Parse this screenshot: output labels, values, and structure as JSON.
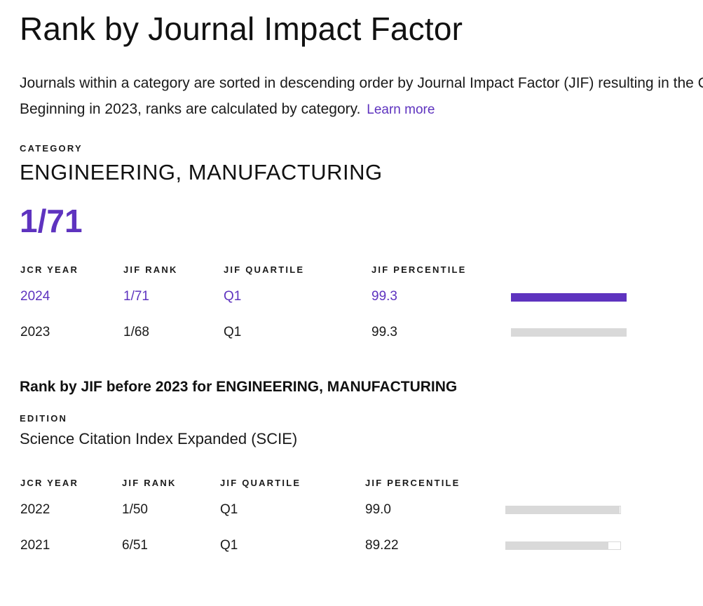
{
  "title": "Rank by Journal Impact Factor",
  "description": {
    "line1": "Journals within a category are sorted in descending order by Journal Impact Factor (JIF) resulting in the Category Ranking below.",
    "line2": "Beginning in 2023, ranks are calculated by category.",
    "learn_more": "Learn more"
  },
  "category": {
    "label": "CATEGORY",
    "name": "ENGINEERING, MANUFACTURING",
    "rank": "1/71"
  },
  "table_current": {
    "headers": [
      "JCR YEAR",
      "JIF RANK",
      "JIF QUARTILE",
      "JIF PERCENTILE"
    ],
    "rows": [
      {
        "year": "2024",
        "rank": "1/71",
        "quartile": "Q1",
        "percentile": "99.3",
        "percentile_value": 99.3
      },
      {
        "year": "2023",
        "rank": "1/68",
        "quartile": "Q1",
        "percentile": "99.3",
        "percentile_value": 99.3
      }
    ]
  },
  "pre2023": {
    "heading": "Rank by JIF before 2023 for ENGINEERING, MANUFACTURING",
    "edition_label": "EDITION",
    "edition_name": "Science Citation Index Expanded (SCIE)",
    "headers": [
      "JCR YEAR",
      "JIF RANK",
      "JIF QUARTILE",
      "JIF PERCENTILE"
    ],
    "rows": [
      {
        "year": "2022",
        "rank": "1/50",
        "quartile": "Q1",
        "percentile": "99.0",
        "percentile_value": 99.0
      },
      {
        "year": "2021",
        "rank": "6/51",
        "quartile": "Q1",
        "percentile": "89.22",
        "percentile_value": 89.22
      }
    ]
  },
  "colors": {
    "accent": "#5e33bf",
    "bar_inactive": "#d9d9d9",
    "text": "#1a1a1a"
  }
}
